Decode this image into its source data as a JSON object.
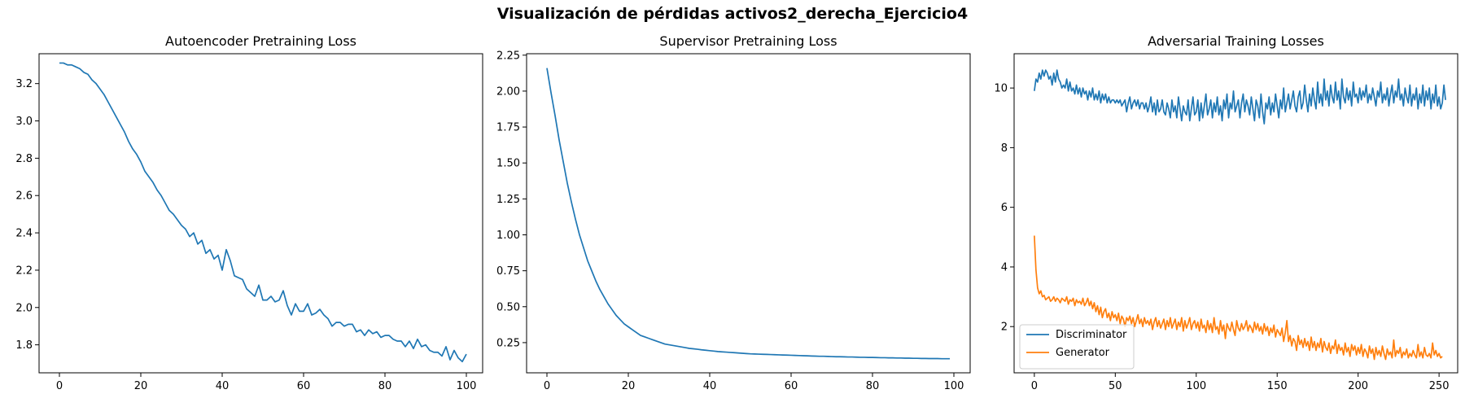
{
  "figure": {
    "suptitle": "Visualización de pérdidas activos2_derecha_Ejercicio4"
  },
  "chart_data": [
    {
      "type": "line",
      "title": "Autoencoder Pretraining Loss",
      "xlabel": "",
      "ylabel": "",
      "xlim": [
        -5,
        104
      ],
      "ylim": [
        1.65,
        3.36
      ],
      "xticks": [
        0,
        20,
        40,
        60,
        80,
        100
      ],
      "yticks": [
        1.8,
        2.0,
        2.2,
        2.4,
        2.6,
        2.8,
        3.0,
        3.2
      ],
      "ytick_format": 1,
      "grid": false,
      "legend": null,
      "series": [
        {
          "color": "#1f77b4",
          "x_start": 0,
          "values": [
            3.31,
            3.31,
            3.3,
            3.3,
            3.29,
            3.28,
            3.26,
            3.25,
            3.22,
            3.2,
            3.17,
            3.14,
            3.1,
            3.06,
            3.02,
            2.98,
            2.94,
            2.89,
            2.85,
            2.82,
            2.78,
            2.73,
            2.7,
            2.67,
            2.63,
            2.6,
            2.56,
            2.52,
            2.5,
            2.47,
            2.44,
            2.42,
            2.38,
            2.4,
            2.34,
            2.36,
            2.29,
            2.31,
            2.26,
            2.28,
            2.2,
            2.31,
            2.25,
            2.17,
            2.16,
            2.15,
            2.1,
            2.08,
            2.06,
            2.12,
            2.04,
            2.04,
            2.06,
            2.03,
            2.04,
            2.09,
            2.01,
            1.96,
            2.02,
            1.98,
            1.98,
            2.02,
            1.96,
            1.97,
            1.99,
            1.96,
            1.94,
            1.9,
            1.92,
            1.92,
            1.9,
            1.91,
            1.91,
            1.87,
            1.88,
            1.85,
            1.88,
            1.86,
            1.87,
            1.84,
            1.85,
            1.85,
            1.83,
            1.82,
            1.82,
            1.79,
            1.82,
            1.78,
            1.83,
            1.79,
            1.8,
            1.77,
            1.76,
            1.76,
            1.74,
            1.79,
            1.72,
            1.77,
            1.73,
            1.71,
            1.75
          ]
        }
      ]
    },
    {
      "type": "line",
      "title": "Supervisor Pretraining Loss",
      "xlabel": "",
      "ylabel": "",
      "xlim": [
        -5,
        104
      ],
      "ylim": [
        0.04,
        2.26
      ],
      "xticks": [
        0,
        20,
        40,
        60,
        80,
        100
      ],
      "yticks": [
        0.25,
        0.5,
        0.75,
        1.0,
        1.25,
        1.5,
        1.75,
        2.0,
        2.25
      ],
      "ytick_format": 2,
      "grid": false,
      "legend": null,
      "series": [
        {
          "color": "#1f77b4",
          "x_start": 0,
          "values": [
            2.16,
            1.99,
            1.83,
            1.66,
            1.51,
            1.36,
            1.23,
            1.11,
            1.0,
            0.91,
            0.82,
            0.75,
            0.68,
            0.62,
            0.57,
            0.52,
            0.48,
            0.44,
            0.41,
            0.38,
            0.36,
            0.34,
            0.32,
            0.3,
            0.29,
            0.28,
            0.27,
            0.26,
            0.25,
            0.24,
            0.235,
            0.23,
            0.225,
            0.22,
            0.215,
            0.21,
            0.207,
            0.204,
            0.2,
            0.197,
            0.194,
            0.191,
            0.188,
            0.186,
            0.184,
            0.182,
            0.18,
            0.178,
            0.176,
            0.174,
            0.172,
            0.171,
            0.17,
            0.169,
            0.168,
            0.167,
            0.166,
            0.165,
            0.164,
            0.163,
            0.162,
            0.161,
            0.16,
            0.159,
            0.158,
            0.157,
            0.156,
            0.155,
            0.155,
            0.154,
            0.153,
            0.152,
            0.152,
            0.151,
            0.15,
            0.15,
            0.149,
            0.148,
            0.148,
            0.147,
            0.147,
            0.146,
            0.145,
            0.145,
            0.144,
            0.144,
            0.143,
            0.143,
            0.142,
            0.142,
            0.141,
            0.141,
            0.14,
            0.14,
            0.139,
            0.139,
            0.139,
            0.138,
            0.138,
            0.138
          ]
        }
      ]
    },
    {
      "type": "line",
      "title": "Adversarial Training Losses",
      "xlabel": "",
      "ylabel": "",
      "xlim": [
        -12.5,
        261.5
      ],
      "ylim": [
        0.45,
        11.15
      ],
      "xticks": [
        0,
        50,
        100,
        150,
        200,
        250
      ],
      "yticks": [
        2,
        4,
        6,
        8,
        10
      ],
      "ytick_format": 0,
      "grid": false,
      "legend": "lower-left",
      "series": [
        {
          "name": "Discriminator",
          "color": "#1f77b4",
          "x_start": 0,
          "values": [
            9.9,
            10.3,
            10.2,
            10.5,
            10.3,
            10.6,
            10.4,
            10.6,
            10.5,
            10.3,
            10.4,
            10.1,
            10.5,
            10.2,
            10.6,
            10.3,
            10.2,
            10.0,
            10.1,
            10.0,
            10.3,
            9.9,
            10.2,
            9.9,
            10.0,
            9.8,
            10.1,
            9.8,
            10.0,
            9.7,
            10.0,
            9.8,
            9.9,
            9.6,
            9.9,
            9.7,
            10.0,
            9.6,
            9.8,
            9.6,
            9.9,
            9.5,
            9.8,
            9.6,
            9.8,
            9.5,
            9.7,
            9.5,
            9.6,
            9.6,
            9.5,
            9.6,
            9.5,
            9.6,
            9.4,
            9.5,
            9.6,
            9.2,
            9.5,
            9.7,
            9.3,
            9.5,
            9.6,
            9.4,
            9.6,
            9.3,
            9.5,
            9.5,
            9.3,
            9.5,
            9.2,
            9.4,
            9.7,
            9.2,
            9.5,
            9.1,
            9.6,
            9.2,
            9.3,
            9.6,
            9.2,
            9.1,
            9.5,
            9.3,
            9.0,
            9.6,
            9.2,
            9.4,
            9.0,
            9.7,
            9.3,
            8.9,
            9.4,
            9.2,
            9.1,
            9.6,
            8.9,
            9.3,
            9.7,
            9.1,
            9.2,
            9.6,
            8.9,
            9.5,
            9.0,
            9.4,
            9.8,
            9.1,
            9.3,
            9.6,
            9.0,
            9.5,
            9.2,
            9.7,
            9.1,
            9.4,
            8.9,
            9.6,
            9.3,
            9.8,
            9.0,
            9.5,
            9.3,
            9.9,
            9.2,
            9.4,
            9.6,
            9.0,
            9.5,
            9.8,
            9.2,
            9.6,
            9.4,
            9.1,
            9.7,
            9.3,
            8.9,
            9.6,
            9.4,
            9.0,
            9.8,
            9.2,
            8.8,
            9.5,
            9.3,
            9.7,
            9.1,
            9.5,
            9.2,
            9.8,
            9.4,
            9.0,
            9.6,
            9.3,
            10.0,
            9.2,
            9.5,
            9.8,
            9.3,
            9.6,
            9.9,
            9.4,
            9.2,
            9.7,
            9.9,
            9.3,
            9.5,
            10.1,
            9.6,
            9.2,
            9.8,
            9.4,
            10.0,
            9.6,
            9.3,
            10.2,
            9.5,
            9.8,
            9.4,
            10.3,
            9.6,
            9.9,
            9.4,
            10.1,
            9.7,
            9.5,
            10.2,
            9.6,
            9.9,
            9.3,
            10.3,
            9.7,
            9.5,
            10.0,
            9.6,
            9.9,
            9.4,
            10.2,
            9.7,
            9.8,
            9.5,
            10.0,
            9.6,
            9.9,
            9.7,
            10.1,
            9.5,
            9.8,
            9.6,
            10.0,
            9.7,
            9.4,
            9.9,
            9.7,
            10.2,
            9.5,
            9.8,
            9.6,
            10.0,
            9.4,
            9.8,
            10.1,
            9.5,
            9.9,
            9.7,
            10.3,
            9.6,
            9.8,
            9.4,
            10.0,
            9.7,
            9.5,
            10.1,
            9.4,
            9.8,
            9.6,
            10.0,
            9.3,
            9.8,
            9.5,
            10.1,
            9.4,
            9.9,
            9.6,
            10.0,
            9.3,
            9.8,
            9.5,
            10.1,
            9.4,
            9.7,
            9.3,
            9.5,
            10.1,
            9.6
          ]
        },
        {
          "name": "Generator",
          "color": "#ff7f0e",
          "x_start": 0,
          "values": [
            5.05,
            3.9,
            3.3,
            3.1,
            3.2,
            3.0,
            3.05,
            2.9,
            2.95,
            3.0,
            2.85,
            2.9,
            3.0,
            2.85,
            2.95,
            2.9,
            2.8,
            2.95,
            2.9,
            2.85,
            3.0,
            2.75,
            2.9,
            2.85,
            2.95,
            2.7,
            2.9,
            2.8,
            2.85,
            2.75,
            2.95,
            2.7,
            2.8,
            2.95,
            2.7,
            2.85,
            2.6,
            2.8,
            2.5,
            2.7,
            2.4,
            2.65,
            2.3,
            2.5,
            2.6,
            2.3,
            2.45,
            2.2,
            2.5,
            2.3,
            2.4,
            2.2,
            2.45,
            2.1,
            2.35,
            2.25,
            2.0,
            2.3,
            2.2,
            2.35,
            2.1,
            2.3,
            2.0,
            2.2,
            2.4,
            2.1,
            2.25,
            2.0,
            2.3,
            2.1,
            2.2,
            2.05,
            2.25,
            1.9,
            2.15,
            2.3,
            2.0,
            2.2,
            1.95,
            2.1,
            2.25,
            1.9,
            2.2,
            2.0,
            2.3,
            1.95,
            2.1,
            2.25,
            1.9,
            2.15,
            2.0,
            2.3,
            1.85,
            2.2,
            1.95,
            2.1,
            2.3,
            1.9,
            2.1,
            2.2,
            1.95,
            2.15,
            1.85,
            2.25,
            1.95,
            2.05,
            1.8,
            2.2,
            1.9,
            2.1,
            1.8,
            2.3,
            1.9,
            2.0,
            1.75,
            2.2,
            1.85,
            2.05,
            1.6,
            2.1,
            1.95,
            1.85,
            2.15,
            1.9,
            1.7,
            2.2,
            1.95,
            1.85,
            2.1,
            1.9,
            2.0,
            2.2,
            1.85,
            2.05,
            1.95,
            1.8,
            2.15,
            1.9,
            2.1,
            1.85,
            2.0,
            1.75,
            2.1,
            1.85,
            2.0,
            1.7,
            1.95,
            1.8,
            2.05,
            1.65,
            1.9,
            1.8,
            1.7,
            1.95,
            1.5,
            1.8,
            2.2,
            1.5,
            1.7,
            1.35,
            1.6,
            1.5,
            1.2,
            1.7,
            1.4,
            1.55,
            1.3,
            1.6,
            1.35,
            1.5,
            1.2,
            1.65,
            1.3,
            1.5,
            1.2,
            1.45,
            1.3,
            1.6,
            1.15,
            1.5,
            1.3,
            1.2,
            1.45,
            1.1,
            1.35,
            1.25,
            1.55,
            1.1,
            1.4,
            1.2,
            1.3,
            1.05,
            1.45,
            1.15,
            1.3,
            1.0,
            1.4,
            1.2,
            1.35,
            1.05,
            1.3,
            1.1,
            1.4,
            1.0,
            1.25,
            1.15,
            0.95,
            1.35,
            1.1,
            1.25,
            0.9,
            1.3,
            1.05,
            1.2,
            1.0,
            1.35,
            1.1,
            0.9,
            1.25,
            1.05,
            1.15,
            0.95,
            1.55,
            1.0,
            1.2,
            1.1,
            1.3,
            0.95,
            1.15,
            1.05,
            1.25,
            0.95,
            1.1,
            1.0,
            1.2,
            1.05,
            0.95,
            1.4,
            1.0,
            1.15,
            0.95,
            1.3,
            1.05,
            1.0,
            1.1,
            0.95,
            1.45,
            1.05,
            1.2,
            1.0,
            1.1,
            0.95,
            1.0
          ]
        }
      ]
    }
  ]
}
